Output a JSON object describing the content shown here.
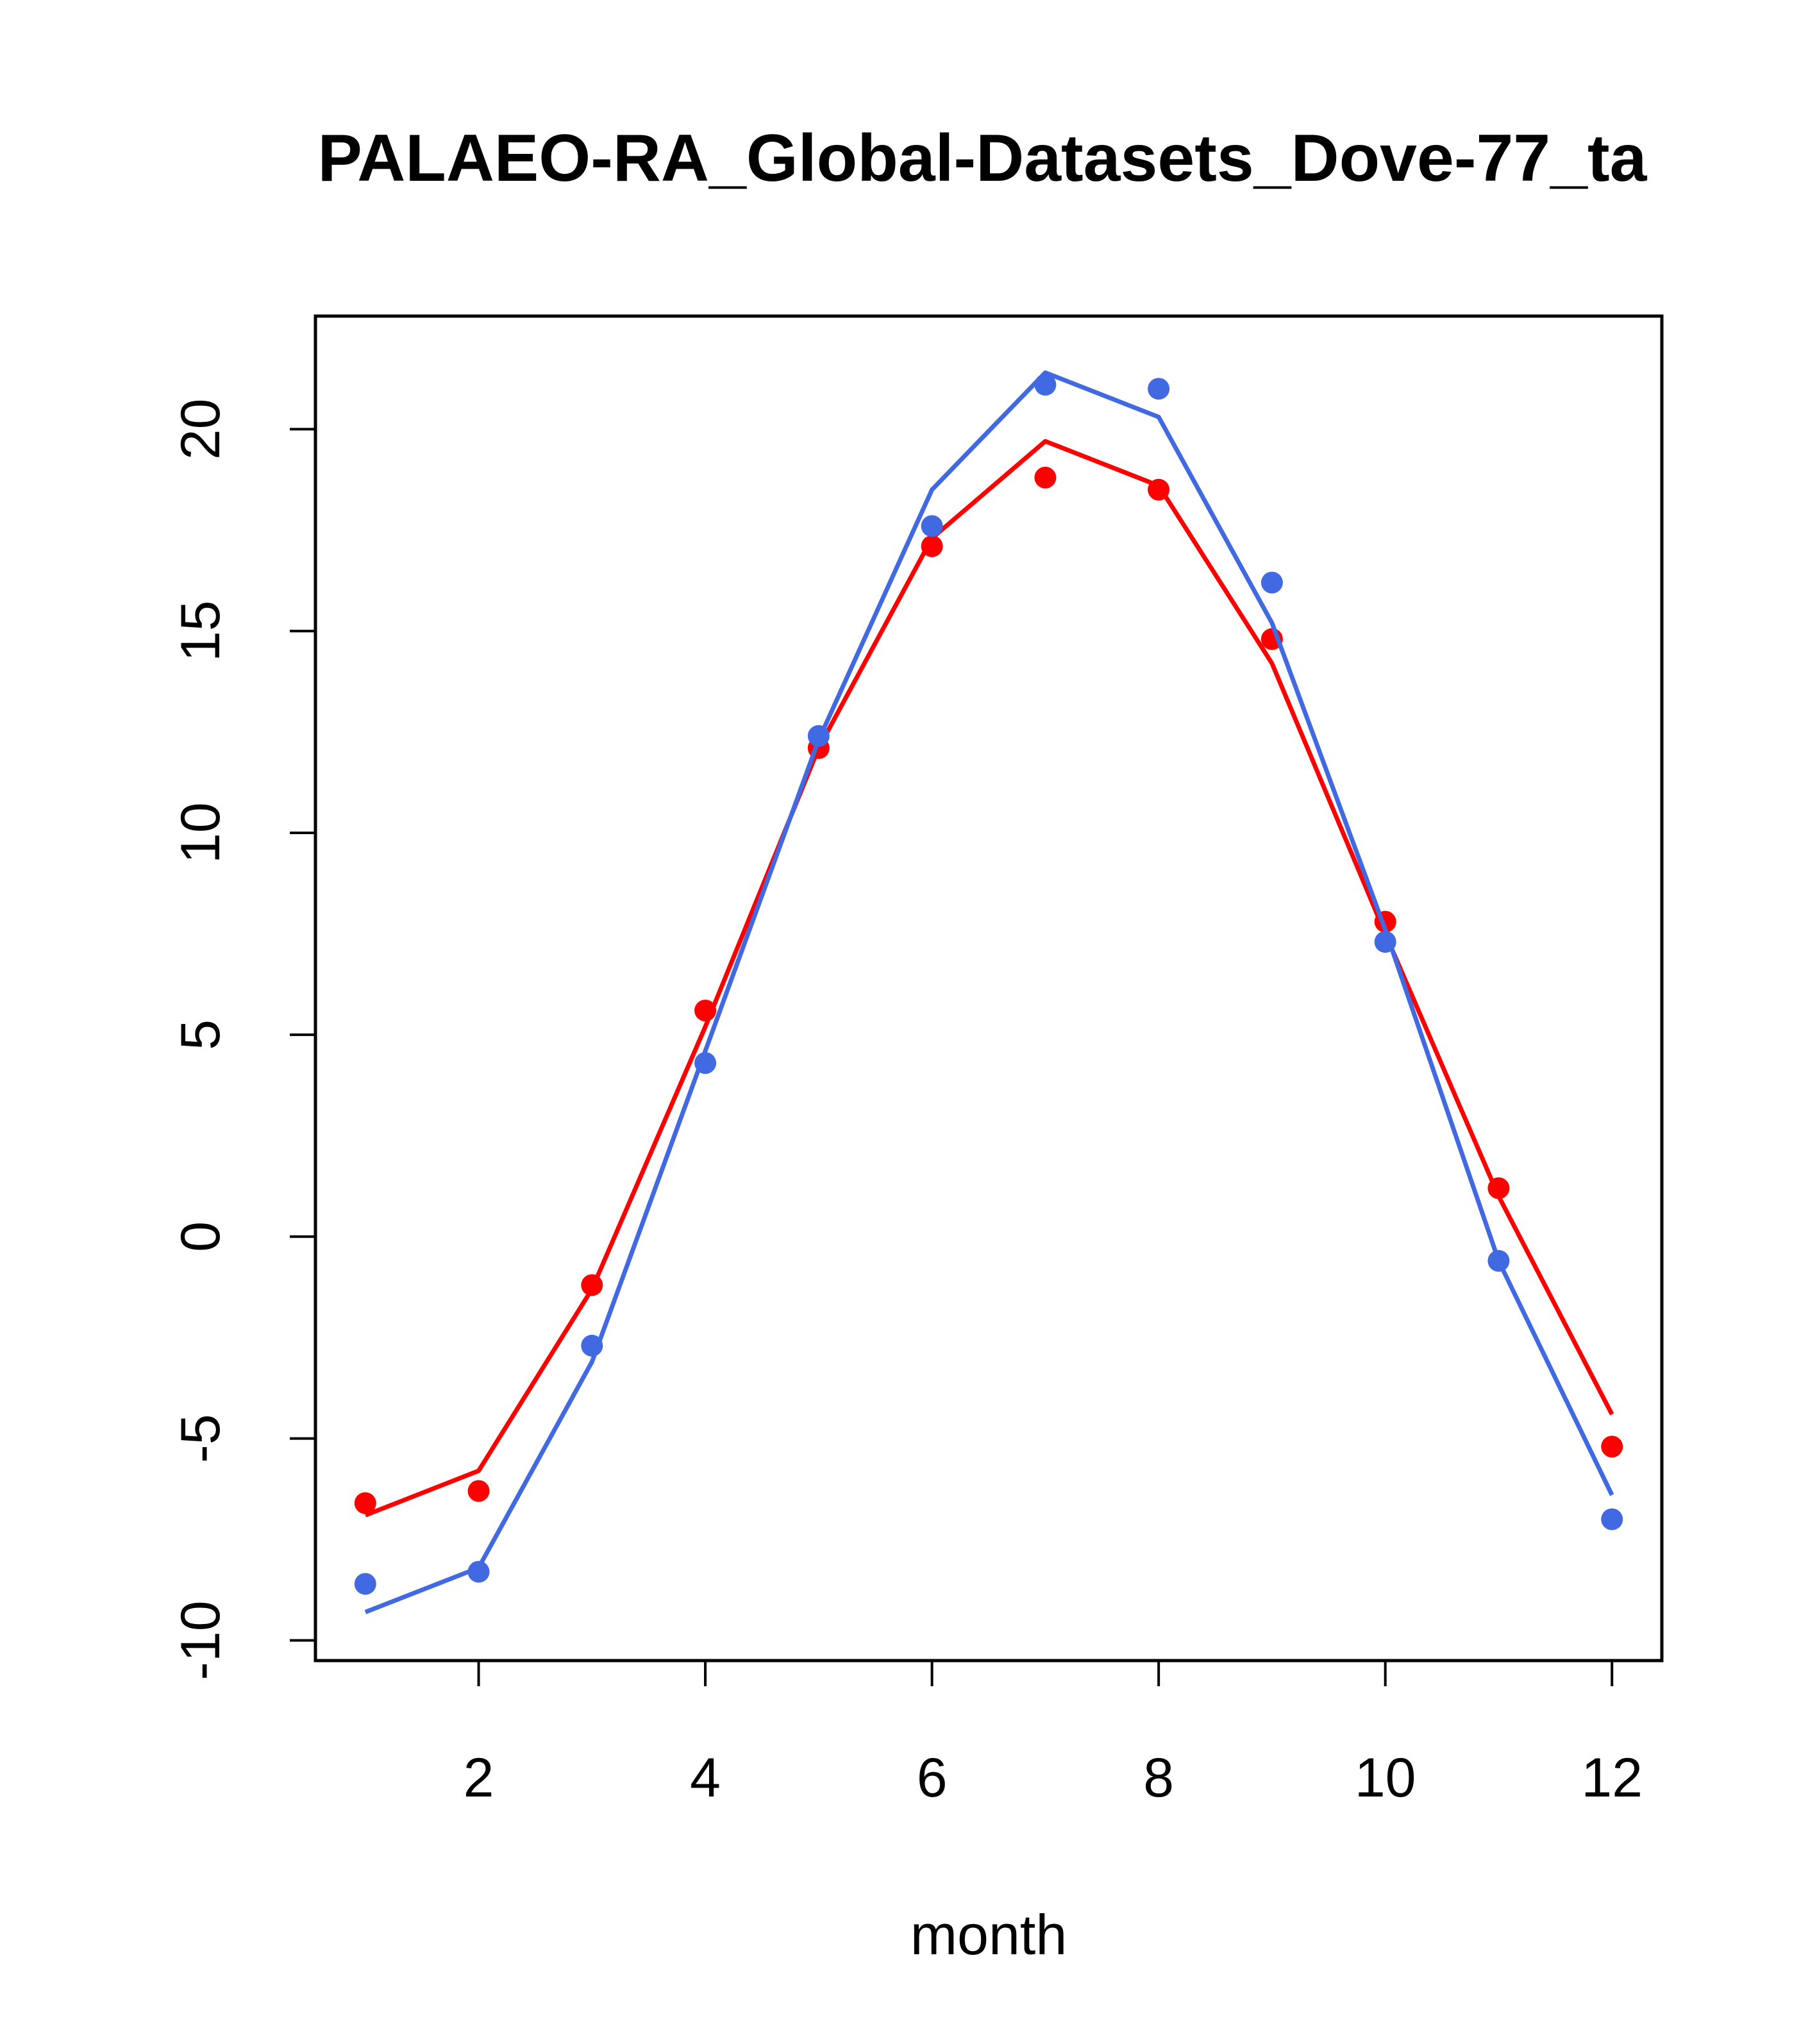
{
  "chart_data": {
    "type": "line",
    "title": "PALAEO-RA_Global-Datasets_Dove-77_ta",
    "xlabel": "month",
    "ylabel": "",
    "xlim": [
      0.56,
      12.44
    ],
    "ylim": [
      -10.5,
      22.8
    ],
    "xticks": [
      2,
      4,
      6,
      8,
      10,
      12
    ],
    "yticks": [
      -10,
      -5,
      0,
      5,
      10,
      15,
      20
    ],
    "grid": false,
    "legend": "none",
    "x": [
      1,
      2,
      3,
      4,
      5,
      6,
      7,
      8,
      9,
      10,
      11,
      12
    ],
    "series": [
      {
        "color": "#ff0000",
        "line": [
          -6.9,
          -5.8,
          -1.3,
          5.2,
          12.1,
          17.3,
          19.7,
          18.6,
          14.2,
          7.5,
          1.0,
          -4.4
        ],
        "points": [
          -6.6,
          -6.3,
          -1.2,
          5.6,
          12.1,
          17.1,
          18.8,
          18.5,
          14.8,
          7.8,
          1.2,
          -5.2
        ]
      },
      {
        "color": "#4169e1",
        "line": [
          -9.3,
          -8.2,
          -3.1,
          4.6,
          12.3,
          18.5,
          21.4,
          20.3,
          15.2,
          7.6,
          -0.6,
          -6.4
        ],
        "points": [
          -8.6,
          -8.3,
          -2.7,
          4.3,
          12.4,
          17.6,
          21.1,
          21.0,
          16.2,
          7.3,
          -0.6,
          -7.0
        ]
      }
    ]
  }
}
